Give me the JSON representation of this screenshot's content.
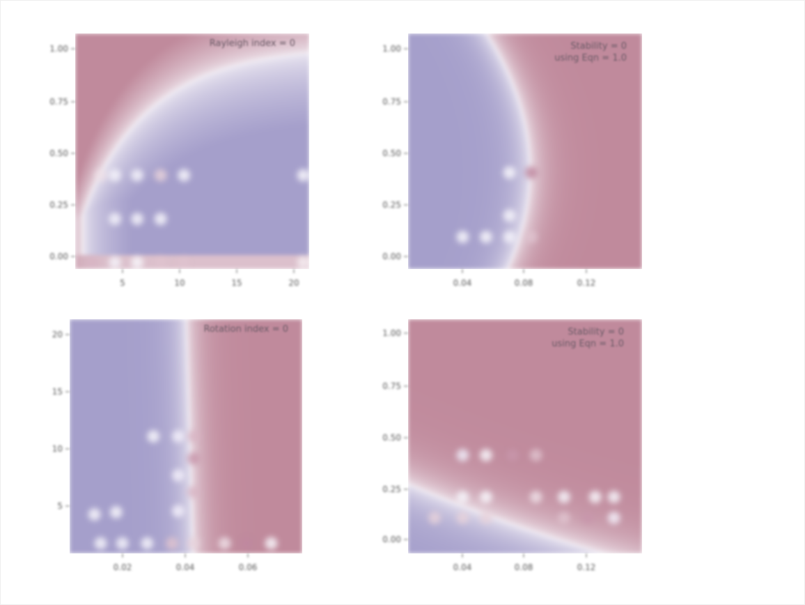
{
  "chart_data": [
    {
      "type": "heatmap",
      "annotation": [
        "Rayleigh index = 0"
      ],
      "xticks": [
        "5",
        "10",
        "15",
        "20"
      ],
      "yticks": [
        "1.00",
        "0.75",
        "0.50",
        "0.25",
        "0.00"
      ],
      "x": [
        1,
        4,
        6,
        8,
        10,
        20
      ],
      "xlim": [
        1,
        21
      ],
      "ylim": [
        -0.03,
        1.05
      ],
      "field": "rayleigh",
      "points": [
        {
          "x": 2.5,
          "y": 0.0,
          "v": 0.5
        },
        {
          "x": 4.4,
          "y": 0.0,
          "v": -0.5
        },
        {
          "x": 6.3,
          "y": 0.0,
          "v": -0.3
        },
        {
          "x": 8.3,
          "y": 0.0,
          "v": 0.4
        },
        {
          "x": 10.3,
          "y": 0.0,
          "v": 0.4
        },
        {
          "x": 20.5,
          "y": 0.0,
          "v": 0.1
        },
        {
          "x": 4.4,
          "y": 0.2,
          "v": -0.5
        },
        {
          "x": 6.3,
          "y": 0.2,
          "v": -0.4
        },
        {
          "x": 8.3,
          "y": 0.2,
          "v": -0.3
        },
        {
          "x": 3.2,
          "y": 0.4,
          "v": 0.2
        },
        {
          "x": 4.4,
          "y": 0.4,
          "v": -0.5
        },
        {
          "x": 6.3,
          "y": 0.4,
          "v": -0.5
        },
        {
          "x": 8.3,
          "y": 0.4,
          "v": 0.3
        },
        {
          "x": 10.3,
          "y": 0.4,
          "v": -0.3
        },
        {
          "x": 20.5,
          "y": 0.4,
          "v": -0.2
        }
      ],
      "colors": {
        "positive": "#c08a9c",
        "negative": "#a59fcb",
        "zero": "#f4f0f6"
      }
    },
    {
      "type": "heatmap",
      "annotation": [
        "Stability = 0",
        "using Eqn = 1.0"
      ],
      "xticks": [
        "0.04",
        "0.08",
        "0.12"
      ],
      "yticks": [
        "1.00",
        "0.75",
        "0.50",
        "0.25",
        "0.00"
      ],
      "xlim": [
        0.0,
        0.15
      ],
      "ylim": [
        -0.05,
        1.05
      ],
      "field": "stability",
      "points": [
        {
          "x": 0.035,
          "y": 0.1,
          "v": -0.3
        },
        {
          "x": 0.05,
          "y": 0.1,
          "v": -0.3
        },
        {
          "x": 0.065,
          "y": 0.1,
          "v": -0.5
        },
        {
          "x": 0.079,
          "y": 0.1,
          "v": 0.4
        },
        {
          "x": 0.065,
          "y": 0.2,
          "v": -0.4
        },
        {
          "x": 0.079,
          "y": 0.4,
          "v": 0.8
        },
        {
          "x": 0.065,
          "y": 0.4,
          "v": -0.3
        }
      ],
      "colors": {
        "positive": "#c08a9c",
        "negative": "#a59fcb",
        "zero": "#f4f0f6"
      }
    },
    {
      "type": "heatmap",
      "annotation": [
        "Rotation index = 0"
      ],
      "xticks": [
        "0.02",
        "0.04",
        "0.06"
      ],
      "yticks": [
        "20",
        "15",
        "10",
        "5"
      ],
      "xlim": [
        0.0,
        0.075
      ],
      "ylim": [
        -0.5,
        20.5
      ],
      "field": "rotation",
      "points": [
        {
          "x": 0.01,
          "y": 0.4,
          "v": -0.4
        },
        {
          "x": 0.017,
          "y": 0.4,
          "v": -0.5
        },
        {
          "x": 0.025,
          "y": 0.4,
          "v": -0.4
        },
        {
          "x": 0.033,
          "y": 0.4,
          "v": 0.4
        },
        {
          "x": 0.04,
          "y": 0.4,
          "v": 0.3
        },
        {
          "x": 0.05,
          "y": 0.4,
          "v": 0.2
        },
        {
          "x": 0.057,
          "y": 0.4,
          "v": 0.8
        },
        {
          "x": 0.065,
          "y": 0.4,
          "v": -0.3
        },
        {
          "x": 0.008,
          "y": 3.0,
          "v": -0.3
        },
        {
          "x": 0.015,
          "y": 3.2,
          "v": -0.3
        },
        {
          "x": 0.035,
          "y": 3.3,
          "v": -0.6
        },
        {
          "x": 0.04,
          "y": 5.0,
          "v": 0.5
        },
        {
          "x": 0.035,
          "y": 6.5,
          "v": -0.6
        },
        {
          "x": 0.04,
          "y": 8.0,
          "v": 0.7
        },
        {
          "x": 0.035,
          "y": 10.0,
          "v": -0.6
        },
        {
          "x": 0.04,
          "y": 10.0,
          "v": 0.5
        },
        {
          "x": 0.027,
          "y": 10.0,
          "v": -0.3
        }
      ],
      "colors": {
        "positive": "#c08a9c",
        "negative": "#a59fcb",
        "zero": "#f4f0f6"
      }
    },
    {
      "type": "heatmap",
      "annotation": [
        "Stability = 0",
        "using Eqn = 1.0"
      ],
      "xticks": [
        "0.04",
        "0.08",
        "0.12"
      ],
      "yticks": [
        "1.00",
        "0.75",
        "0.50",
        "0.25",
        "0.00"
      ],
      "xlim": [
        0.0,
        0.15
      ],
      "ylim": [
        -0.07,
        1.05
      ],
      "field": "stability2",
      "points": [
        {
          "x": 0.017,
          "y": 0.1,
          "v": 0.3
        },
        {
          "x": 0.035,
          "y": 0.1,
          "v": 0.3
        },
        {
          "x": 0.05,
          "y": 0.1,
          "v": 0.3
        },
        {
          "x": 0.1,
          "y": 0.1,
          "v": 0.4
        },
        {
          "x": 0.115,
          "y": 0.1,
          "v": 0.7
        },
        {
          "x": 0.132,
          "y": 0.1,
          "v": -0.6
        },
        {
          "x": 0.035,
          "y": 0.2,
          "v": -0.4
        },
        {
          "x": 0.05,
          "y": 0.2,
          "v": -0.3
        },
        {
          "x": 0.082,
          "y": 0.2,
          "v": 0.2
        },
        {
          "x": 0.1,
          "y": 0.2,
          "v": -0.4
        },
        {
          "x": 0.12,
          "y": 0.2,
          "v": -0.3
        },
        {
          "x": 0.132,
          "y": 0.2,
          "v": -0.4
        },
        {
          "x": 0.035,
          "y": 0.4,
          "v": -0.8
        },
        {
          "x": 0.05,
          "y": 0.4,
          "v": -0.3
        },
        {
          "x": 0.067,
          "y": 0.4,
          "v": 0.7
        },
        {
          "x": 0.082,
          "y": 0.4,
          "v": 0.4
        }
      ],
      "colors": {
        "positive": "#c08a9c",
        "negative": "#a59fcb",
        "zero": "#f4f0f6"
      }
    }
  ]
}
